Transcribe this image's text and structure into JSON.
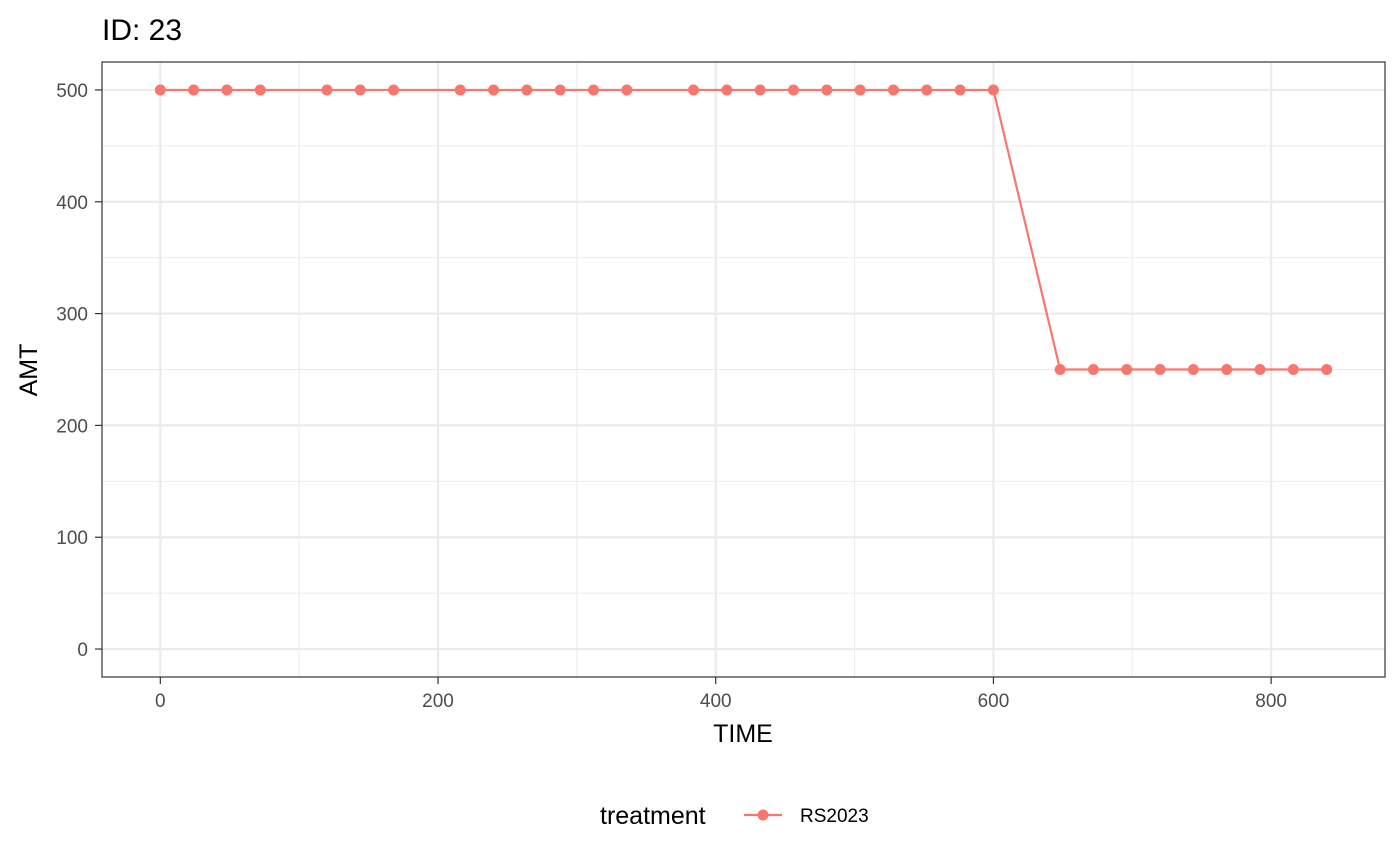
{
  "chart_data": {
    "type": "line",
    "title": "ID: 23",
    "xlabel": "TIME",
    "ylabel": "AMT",
    "xlim": [
      -42,
      882
    ],
    "ylim": [
      -25,
      525
    ],
    "x_major_ticks": [
      0,
      200,
      400,
      600,
      800
    ],
    "x_minor_ticks": [
      100,
      300,
      500,
      700
    ],
    "y_major_ticks": [
      0,
      100,
      200,
      300,
      400,
      500
    ],
    "y_minor_ticks": [
      50,
      150,
      250,
      350,
      450
    ],
    "x_tick_labels": [
      "0",
      "200",
      "400",
      "600",
      "800"
    ],
    "y_tick_labels": [
      "0",
      "100",
      "200",
      "300",
      "400",
      "500"
    ],
    "grid": true,
    "legend": {
      "title": "treatment",
      "position": "bottom"
    },
    "series": [
      {
        "name": "RS2023",
        "color": "#F8766D",
        "x": [
          0,
          24,
          48,
          72,
          120,
          144,
          168,
          216,
          240,
          264,
          288,
          312,
          336,
          384,
          408,
          432,
          456,
          480,
          504,
          528,
          552,
          576,
          600,
          648,
          672,
          696,
          720,
          744,
          768,
          792,
          816,
          840
        ],
        "y": [
          500,
          500,
          500,
          500,
          500,
          500,
          500,
          500,
          500,
          500,
          500,
          500,
          500,
          500,
          500,
          500,
          500,
          500,
          500,
          500,
          500,
          500,
          500,
          250,
          250,
          250,
          250,
          250,
          250,
          250,
          250,
          250
        ]
      }
    ]
  }
}
